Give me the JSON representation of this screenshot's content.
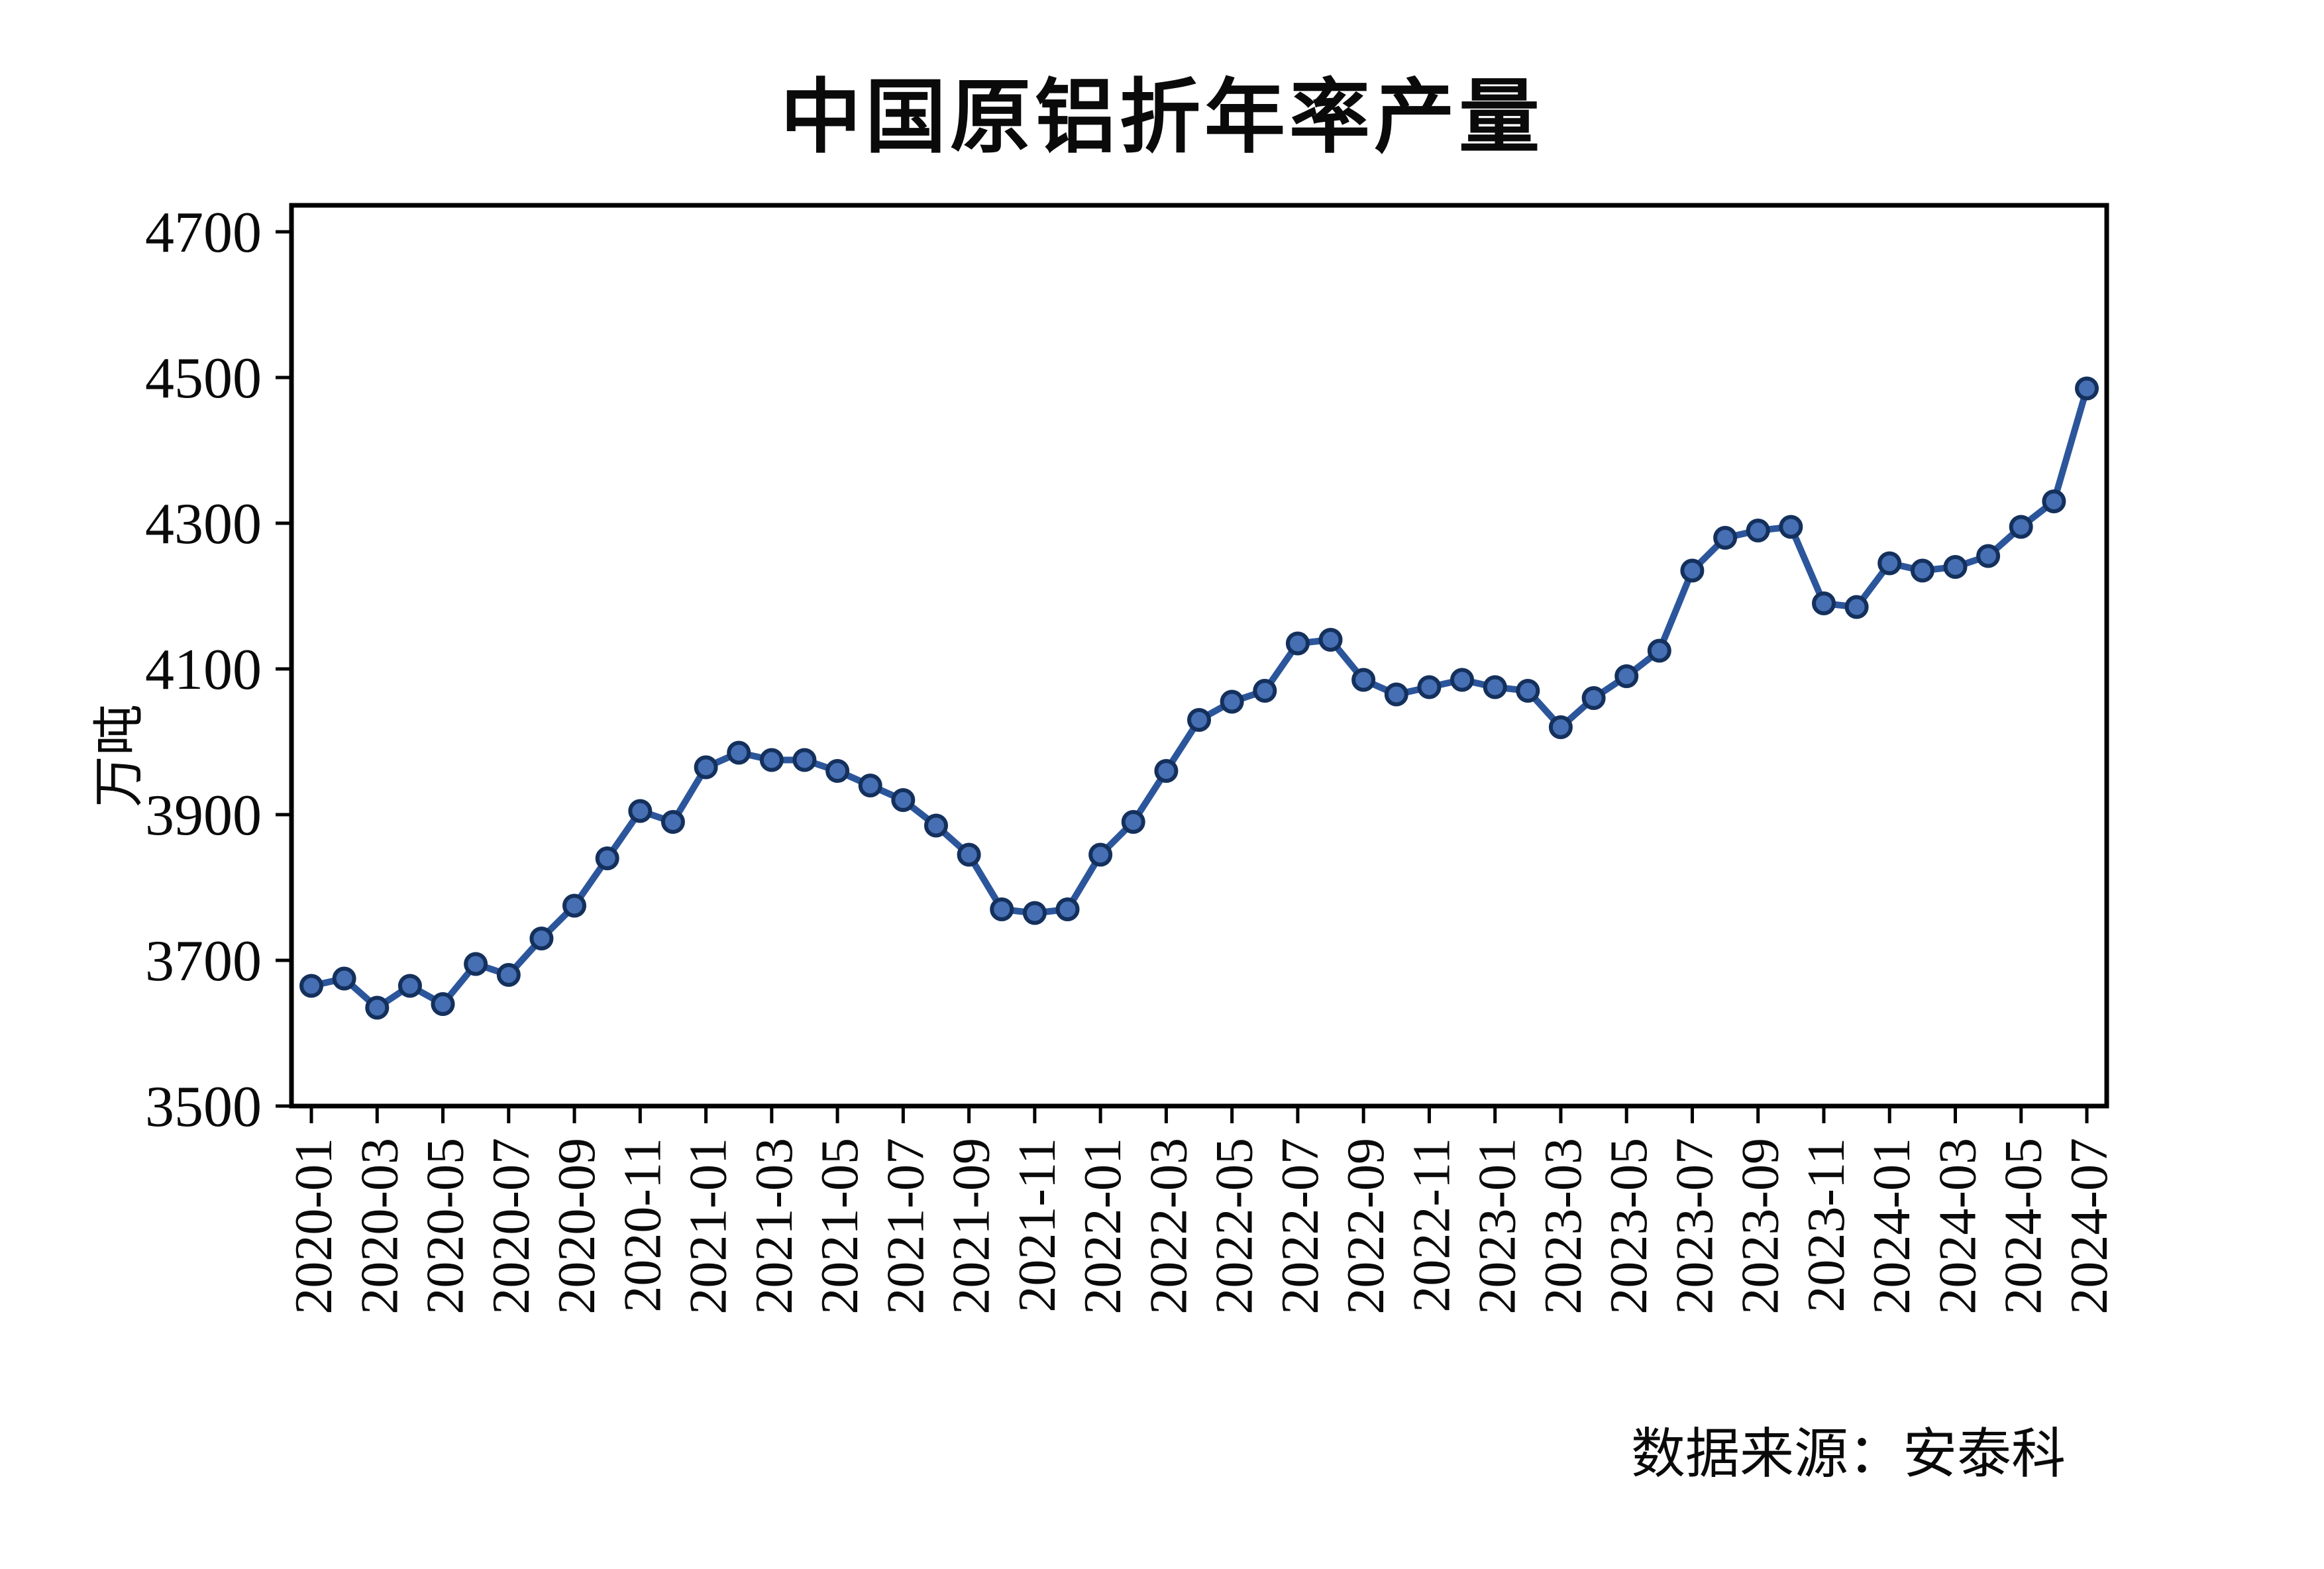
{
  "title": "中国原铝折年率产量",
  "source_note": "数据来源：安泰科",
  "colors": {
    "line": "#2c569c",
    "marker_fill": "#466fb4",
    "marker_edge": "#14305c",
    "axis": "#000000",
    "text": "#0a0a0a",
    "background": "#ffffff"
  },
  "chart_data": {
    "type": "line",
    "title": "中国原铝折年率产量",
    "ylabel": "万吨",
    "xlabel": "",
    "grid": false,
    "legend": null,
    "ylim": [
      3500,
      4740
    ],
    "yticks": [
      3500,
      3700,
      3900,
      4100,
      4300,
      4500,
      4700
    ],
    "xtick_every": 2,
    "x": [
      "2020-01",
      "2020-02",
      "2020-03",
      "2020-04",
      "2020-05",
      "2020-06",
      "2020-07",
      "2020-08",
      "2020-09",
      "2020-10",
      "2020-11",
      "2020-12",
      "2021-01",
      "2021-02",
      "2021-03",
      "2021-04",
      "2021-05",
      "2021-06",
      "2021-07",
      "2021-08",
      "2021-09",
      "2021-10",
      "2021-11",
      "2021-12",
      "2022-01",
      "2022-02",
      "2022-03",
      "2022-04",
      "2022-05",
      "2022-06",
      "2022-07",
      "2022-08",
      "2022-09",
      "2022-10",
      "2022-11",
      "2022-12",
      "2023-01",
      "2023-02",
      "2023-03",
      "2023-04",
      "2023-05",
      "2023-06",
      "2023-07",
      "2023-08",
      "2023-09",
      "2023-10",
      "2023-11",
      "2023-12",
      "2024-01",
      "2024-02",
      "2024-03",
      "2024-04",
      "2024-05",
      "2024-06",
      "2024-07"
    ],
    "values": [
      3665,
      3675,
      3635,
      3665,
      3640,
      3695,
      3680,
      3730,
      3775,
      3840,
      3905,
      3890,
      3965,
      3985,
      3975,
      3975,
      3960,
      3940,
      3920,
      3885,
      3845,
      3770,
      3765,
      3770,
      3845,
      3890,
      3960,
      4030,
      4055,
      4070,
      4135,
      4140,
      4085,
      4065,
      4075,
      4085,
      4075,
      4070,
      4020,
      4060,
      4090,
      4125,
      4235,
      4280,
      4290,
      4295,
      4190,
      4185,
      4245,
      4235,
      4240,
      4255,
      4295,
      4330,
      4485
    ]
  }
}
